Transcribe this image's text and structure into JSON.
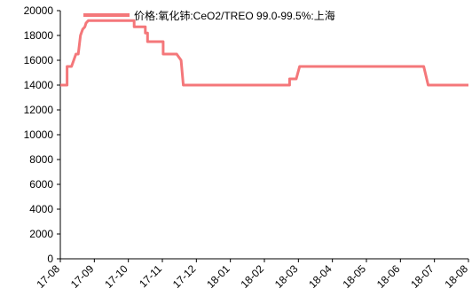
{
  "chart_data": {
    "type": "line",
    "series": [
      {
        "name": "价格:氧化铈:CeO2/TREO   99.0-99.5%:上海",
        "color": "#F4777A",
        "points": [
          [
            "2017-08-01",
            14000
          ],
          [
            "2017-08-07",
            14000
          ],
          [
            "2017-08-07",
            15500
          ],
          [
            "2017-08-11",
            15500
          ],
          [
            "2017-08-13",
            16000
          ],
          [
            "2017-08-15",
            16500
          ],
          [
            "2017-08-17",
            16500
          ],
          [
            "2017-08-19",
            18000
          ],
          [
            "2017-08-21",
            18500
          ],
          [
            "2017-08-23",
            18700
          ],
          [
            "2017-08-24",
            19000
          ],
          [
            "2017-08-26",
            19200
          ],
          [
            "2017-10-06",
            19200
          ],
          [
            "2017-10-06",
            18700
          ],
          [
            "2017-10-16",
            18700
          ],
          [
            "2017-10-16",
            18200
          ],
          [
            "2017-10-18",
            18200
          ],
          [
            "2017-10-18",
            17500
          ],
          [
            "2017-10-28",
            17500
          ],
          [
            "2017-11-01",
            17500
          ],
          [
            "2017-11-01",
            16500
          ],
          [
            "2017-11-13",
            16500
          ],
          [
            "2017-11-17",
            16000
          ],
          [
            "2017-11-19",
            14000
          ],
          [
            "2018-02-22",
            14000
          ],
          [
            "2018-02-22",
            14500
          ],
          [
            "2018-02-28",
            14500
          ],
          [
            "2018-03-03",
            15500
          ],
          [
            "2018-06-22",
            15500
          ],
          [
            "2018-06-26",
            14000
          ],
          [
            "2018-08-01",
            14000
          ]
        ]
      }
    ],
    "x_ticks": [
      "17-08",
      "17-09",
      "17-10",
      "17-11",
      "17-12",
      "18-01",
      "18-02",
      "18-03",
      "18-04",
      "18-05",
      "18-06",
      "18-07",
      "18-08"
    ],
    "x_range": [
      "2017-08-01",
      "2018-08-01"
    ],
    "y_ticks": [
      0,
      2000,
      4000,
      6000,
      8000,
      10000,
      12000,
      14000,
      16000,
      18000,
      20000
    ],
    "ylim": [
      0,
      20000
    ],
    "grid": false,
    "legend_position": "top"
  }
}
